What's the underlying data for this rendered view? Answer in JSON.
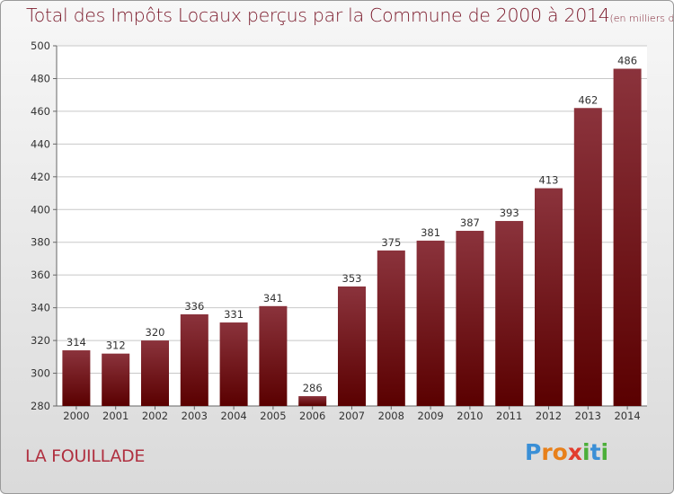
{
  "chart_data": {
    "type": "bar",
    "title": "Total des Impôts Locaux perçus par la Commune de 2000 à 2014",
    "unit_note": "(en milliers d'€)",
    "categories": [
      "2000",
      "2001",
      "2002",
      "2003",
      "2004",
      "2005",
      "2006",
      "2007",
      "2008",
      "2009",
      "2010",
      "2011",
      "2012",
      "2013",
      "2014"
    ],
    "values": [
      314,
      312,
      320,
      336,
      331,
      341,
      286,
      353,
      375,
      381,
      387,
      393,
      413,
      462,
      486
    ],
    "ylim": [
      280,
      500
    ],
    "yticks": [
      280,
      300,
      320,
      340,
      360,
      380,
      400,
      420,
      440,
      460,
      480,
      500
    ],
    "grid": true,
    "xlabel": "",
    "ylabel": ""
  },
  "commune_name": "LA FOUILLADE",
  "logo": {
    "letters": [
      {
        "char": "P",
        "color": "#3a8fd6"
      },
      {
        "char": "r",
        "color": "#e8801a"
      },
      {
        "char": "o",
        "color": "#e8801a"
      },
      {
        "char": "x",
        "color": "#e23c2e"
      },
      {
        "char": "i",
        "color": "#4caf3a"
      },
      {
        "char": "t",
        "color": "#3a8fd6"
      },
      {
        "char": "i",
        "color": "#4caf3a"
      }
    ]
  },
  "colors": {
    "bar_top": "#8b333c",
    "bar_bottom": "#5a0000",
    "grid": "#c8c8c8",
    "axis_text": "#333333"
  }
}
